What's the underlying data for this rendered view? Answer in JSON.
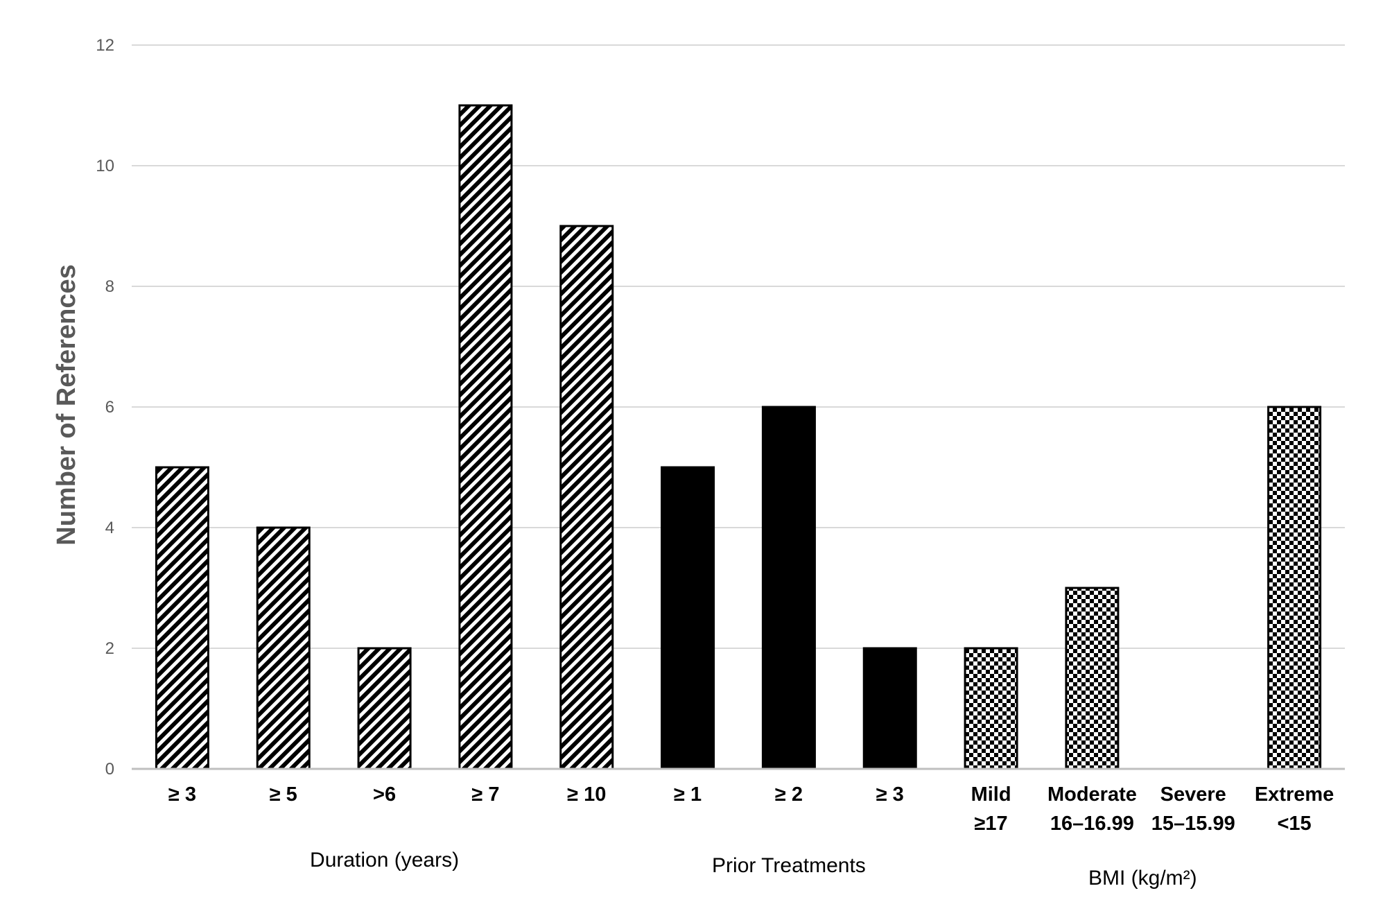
{
  "chart_data": {
    "type": "bar",
    "title": "",
    "ylabel": "Number of References",
    "ylim": [
      0,
      12
    ],
    "yticks": [
      0,
      2,
      4,
      6,
      8,
      10,
      12
    ],
    "grid": true,
    "legend": "none",
    "categories": [
      [
        "≥ 3"
      ],
      [
        "≥ 5"
      ],
      [
        ">6"
      ],
      [
        "≥ 7"
      ],
      [
        "≥ 10"
      ],
      [
        "≥ 1"
      ],
      [
        "≥ 2"
      ],
      [
        "≥ 3"
      ],
      [
        "Mild",
        "≥17"
      ],
      [
        "Moderate",
        "16–16.99"
      ],
      [
        "Severe",
        "15–15.99"
      ],
      [
        "Extreme",
        "<15"
      ]
    ],
    "values": [
      5,
      4,
      2,
      11,
      9,
      5,
      6,
      2,
      2,
      3,
      0,
      6
    ],
    "groups": [
      {
        "name": "Duration (years)",
        "start": 0,
        "end": 4,
        "pattern": "diagonal-stripes"
      },
      {
        "name": "Prior Treatments",
        "start": 5,
        "end": 7,
        "pattern": "solid"
      },
      {
        "name": "BMI (kg/m²)",
        "start": 8,
        "end": 11,
        "pattern": "checkerboard"
      }
    ],
    "colors": {
      "bar": "#000000",
      "grid": "#d9d9d9",
      "axis": "#bfbfbf",
      "tick_text": "#595959"
    }
  }
}
